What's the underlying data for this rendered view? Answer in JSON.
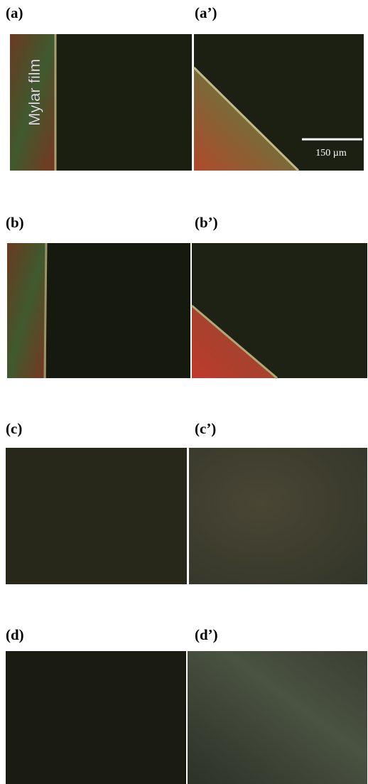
{
  "panels": [
    {
      "label": "(a)"
    },
    {
      "label": "(a’)"
    },
    {
      "label": "(b)"
    },
    {
      "label": "(b’)"
    },
    {
      "label": "(c)"
    },
    {
      "label": "(c’)"
    },
    {
      "label": "(d)"
    },
    {
      "label": "(d’)"
    }
  ],
  "annotations": {
    "film_label": "Mylar film",
    "scale_bar": "150 µm"
  }
}
